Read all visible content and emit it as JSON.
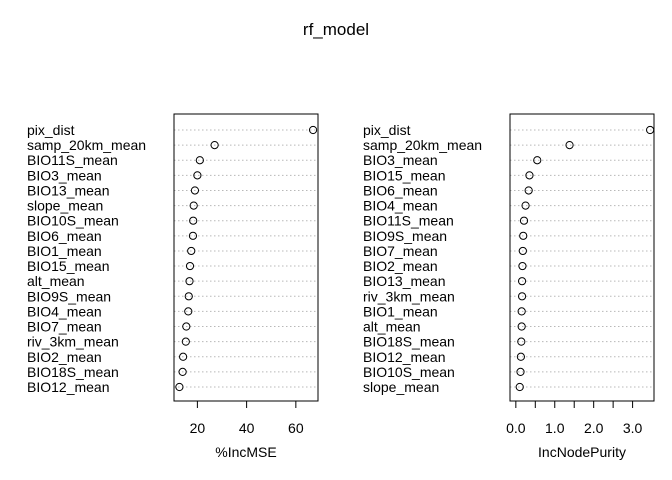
{
  "figure": {
    "title": "rf_model"
  },
  "chart_data": [
    {
      "type": "scatter",
      "xlabel": "%IncMSE",
      "xlim": [
        10.5,
        69
      ],
      "xticks": [
        20,
        40,
        60
      ],
      "xtick_labels": [
        "20",
        "40",
        "60"
      ],
      "grid": "dotted horizontal",
      "marker": "open circle",
      "categories": [
        "pix_dist",
        "samp_20km_mean",
        "BIO11S_mean",
        "BIO3_mean",
        "BIO13_mean",
        "slope_mean",
        "BIO10S_mean",
        "BIO6_mean",
        "BIO1_mean",
        "BIO15_mean",
        "alt_mean",
        "BIO9S_mean",
        "BIO4_mean",
        "BIO7_mean",
        "riv_3km_mean",
        "BIO2_mean",
        "BIO18S_mean",
        "BIO12_mean"
      ],
      "values": [
        67,
        27,
        21,
        20,
        19,
        18.5,
        18.3,
        18.2,
        17.5,
        17,
        16.8,
        16.5,
        16.3,
        15.5,
        15.3,
        14.2,
        14.0,
        12.7
      ]
    },
    {
      "type": "scatter",
      "xlabel": "IncNodePurity",
      "xlim": [
        -0.15,
        3.55
      ],
      "xticks": [
        0,
        0.5,
        1,
        1.5,
        2,
        2.5,
        3
      ],
      "xtick_labels": [
        "0.0",
        "",
        "1.0",
        "",
        "2.0",
        "",
        "3.0"
      ],
      "grid": "dotted horizontal",
      "marker": "open circle",
      "categories": [
        "pix_dist",
        "samp_20km_mean",
        "BIO3_mean",
        "BIO15_mean",
        "BIO6_mean",
        "BIO4_mean",
        "BIO11S_mean",
        "BIO9S_mean",
        "BIO7_mean",
        "BIO2_mean",
        "BIO13_mean",
        "riv_3km_mean",
        "BIO1_mean",
        "alt_mean",
        "BIO18S_mean",
        "BIO12_mean",
        "BIO10S_mean",
        "slope_mean"
      ],
      "values": [
        3.45,
        1.38,
        0.55,
        0.35,
        0.33,
        0.25,
        0.21,
        0.19,
        0.18,
        0.17,
        0.16,
        0.16,
        0.15,
        0.15,
        0.14,
        0.13,
        0.12,
        0.1
      ]
    }
  ]
}
